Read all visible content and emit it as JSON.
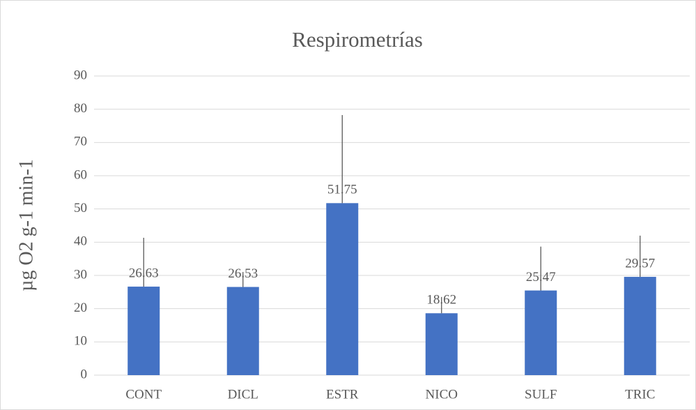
{
  "chart_data": {
    "type": "bar",
    "title": "Respirometrías",
    "y_label": "µg O2 g-1 min-1",
    "categories": [
      "CONT",
      "DICL",
      "ESTR",
      "NICO",
      "SULF",
      "TRIC"
    ],
    "values": [
      26.63,
      26.53,
      51.75,
      18.62,
      25.47,
      29.57
    ],
    "errors": [
      14.7,
      4.5,
      26.5,
      4.9,
      13.2,
      12.4
    ],
    "color": "#4472c4",
    "error_color": "#595959",
    "ylim": [
      0,
      90
    ],
    "yticks": [
      0,
      10,
      20,
      30,
      40,
      50,
      60,
      70,
      80,
      90
    ],
    "grid": true
  }
}
